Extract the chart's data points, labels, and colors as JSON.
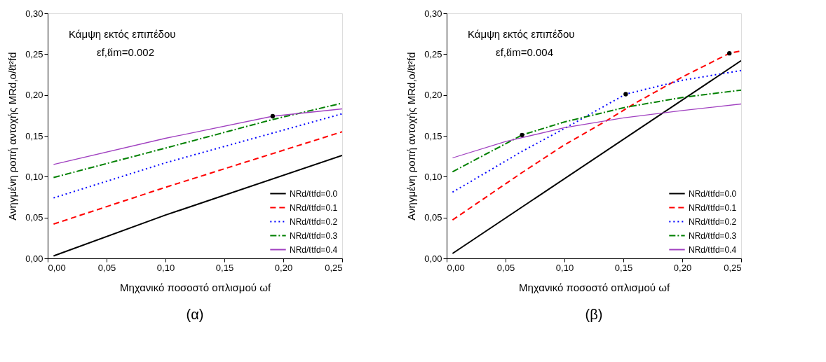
{
  "chart_data": [
    {
      "type": "line",
      "title": "(α)",
      "xlabel": "Μηχανικό ποσοστό οπλισμού ωf",
      "ylabel": "Ανηγμένη ροπή αντοχής MRd,o/ℓt²fd",
      "annotations": [
        "Κάμψη εκτός επιπέδου",
        "εf,ℓim=0.002"
      ],
      "xlim": [
        0,
        0.25
      ],
      "ylim": [
        0,
        0.3
      ],
      "xticks": [
        {
          "value": 0,
          "label": "0,00"
        },
        {
          "value": 0.05,
          "label": "0,05"
        },
        {
          "value": 0.1,
          "label": "0,10"
        },
        {
          "value": 0.15,
          "label": "0,15"
        },
        {
          "value": 0.2,
          "label": "0,20"
        },
        {
          "value": 0.25,
          "label": "0,25"
        }
      ],
      "yticks": [
        {
          "value": 0,
          "label": "0,00"
        },
        {
          "value": 0.05,
          "label": "0,05"
        },
        {
          "value": 0.1,
          "label": "0,10"
        },
        {
          "value": 0.15,
          "label": "0,15"
        },
        {
          "value": 0.2,
          "label": "0,20"
        },
        {
          "value": 0.25,
          "label": "0,25"
        },
        {
          "value": 0.3,
          "label": "0,30"
        }
      ],
      "grid": false,
      "legend": "bottom right",
      "series": [
        {
          "name": "NRd/ℓtfd=0.0",
          "color": "#000000",
          "line_style": "solid",
          "x": [
            0.005,
            0.1,
            0.25
          ],
          "values": [
            0.003,
            0.053,
            0.126
          ]
        },
        {
          "name": "NRd/ℓtfd=0.1",
          "color": "#ff0000",
          "line_style": "dashed",
          "x": [
            0.005,
            0.1,
            0.25
          ],
          "values": [
            0.042,
            0.087,
            0.155
          ]
        },
        {
          "name": "NRd/ℓtfd=0.2",
          "color": "#0000ff",
          "line_style": "dotted",
          "x": [
            0.005,
            0.1,
            0.25
          ],
          "values": [
            0.074,
            0.117,
            0.177
          ]
        },
        {
          "name": "NRd/ℓtfd=0.3",
          "color": "#008000",
          "line_style": "dashdot",
          "x": [
            0.005,
            0.1,
            0.191,
            0.25
          ],
          "values": [
            0.099,
            0.135,
            0.17,
            0.19
          ]
        },
        {
          "name": "NRd/ℓtfd=0.4",
          "color": "#a040c0",
          "line_style": "solid",
          "x": [
            0.005,
            0.1,
            0.191,
            0.25
          ],
          "values": [
            0.115,
            0.147,
            0.174,
            0.183
          ]
        },
        {
          "type": "scatter",
          "color": "#000000",
          "x": [
            0.191
          ],
          "values": [
            0.174
          ]
        }
      ]
    },
    {
      "type": "line",
      "title": "(β)",
      "xlabel": "Μηχανικό ποσοστό οπλισμού ωf",
      "ylabel": "Ανηγμένη ροπή αντοχής MRd,o/ℓt²fd",
      "annotations": [
        "Κάμψη εκτός επιπέδου",
        "εf,ℓim=0.004"
      ],
      "xlim": [
        0,
        0.25
      ],
      "ylim": [
        0,
        0.3
      ],
      "xticks": [
        {
          "value": 0,
          "label": "0,00"
        },
        {
          "value": 0.05,
          "label": "0,05"
        },
        {
          "value": 0.1,
          "label": "0,10"
        },
        {
          "value": 0.15,
          "label": "0,15"
        },
        {
          "value": 0.2,
          "label": "0,20"
        },
        {
          "value": 0.25,
          "label": "0,25"
        }
      ],
      "yticks": [
        {
          "value": 0,
          "label": "0,00"
        },
        {
          "value": 0.05,
          "label": "0,05"
        },
        {
          "value": 0.1,
          "label": "0,10"
        },
        {
          "value": 0.15,
          "label": "0,15"
        },
        {
          "value": 0.2,
          "label": "0,20"
        },
        {
          "value": 0.25,
          "label": "0,25"
        },
        {
          "value": 0.3,
          "label": "0,30"
        }
      ],
      "grid": false,
      "legend": "bottom right",
      "series": [
        {
          "name": "NRd/ℓtfd=0.0",
          "color": "#000000",
          "line_style": "solid",
          "x": [
            0.005,
            0.25
          ],
          "values": [
            0.006,
            0.242
          ]
        },
        {
          "name": "NRd/ℓtfd=0.1",
          "color": "#ff0000",
          "line_style": "dashed",
          "x": [
            0.005,
            0.064,
            0.1,
            0.134,
            0.16,
            0.2,
            0.24,
            0.25
          ],
          "values": [
            0.047,
            0.105,
            0.139,
            0.167,
            0.19,
            0.222,
            0.251,
            0.254
          ]
        },
        {
          "name": "NRd/ℓtfd=0.2",
          "color": "#0000ff",
          "line_style": "dotted",
          "x": [
            0.005,
            0.064,
            0.1,
            0.152,
            0.2,
            0.25
          ],
          "values": [
            0.081,
            0.131,
            0.159,
            0.201,
            0.218,
            0.23
          ]
        },
        {
          "name": "NRd/ℓtfd=0.3",
          "color": "#008000",
          "line_style": "dashdot",
          "x": [
            0.005,
            0.064,
            0.1,
            0.152,
            0.2,
            0.25
          ],
          "values": [
            0.106,
            0.151,
            0.167,
            0.185,
            0.197,
            0.206
          ]
        },
        {
          "name": "NRd/ℓtfd=0.4",
          "color": "#a040c0",
          "line_style": "solid",
          "x": [
            0.005,
            0.05,
            0.1,
            0.15,
            0.2,
            0.25
          ],
          "values": [
            0.123,
            0.143,
            0.16,
            0.172,
            0.181,
            0.189
          ]
        },
        {
          "type": "scatter",
          "color": "#000000",
          "x": [
            0.064,
            0.152,
            0.24
          ],
          "values": [
            0.151,
            0.201,
            0.251
          ]
        }
      ]
    }
  ]
}
